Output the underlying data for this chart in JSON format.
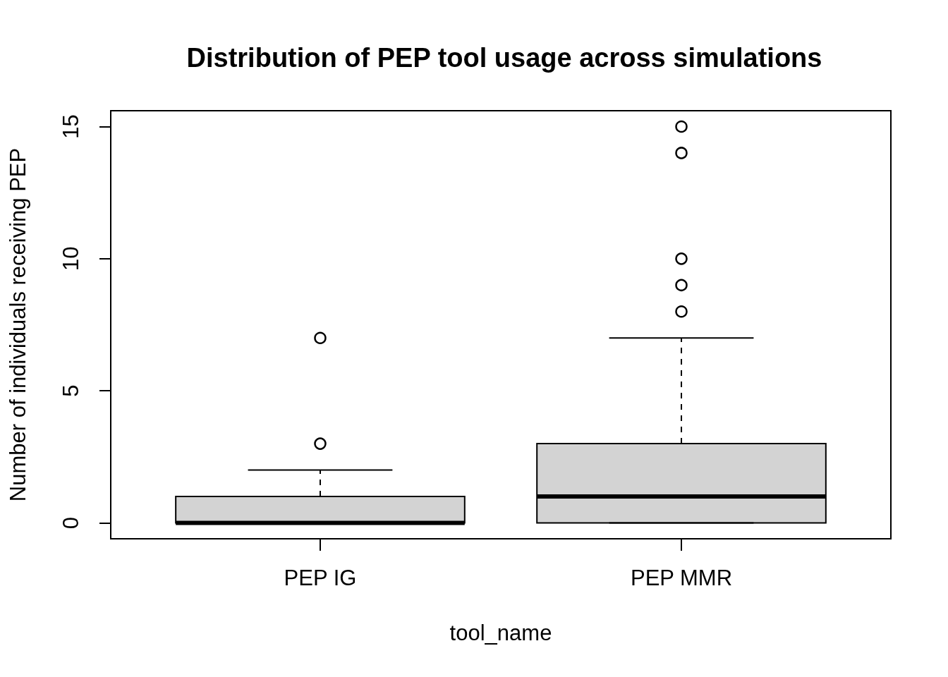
{
  "chart_data": {
    "type": "box",
    "title": "Distribution of PEP tool usage across simulations",
    "xlabel": "tool_name",
    "ylabel": "Number of individuals receiving PEP",
    "categories": [
      "PEP IG",
      "PEP MMR"
    ],
    "color": "#d3d3d3",
    "boxes": [
      {
        "low": 0,
        "q1": 0,
        "median": 0,
        "q3": 1,
        "high": 2,
        "outliers": [
          3,
          7
        ]
      },
      {
        "low": 0,
        "q1": 0,
        "median": 1,
        "q3": 3,
        "high": 7,
        "outliers": [
          8,
          9,
          10,
          14,
          15
        ]
      }
    ],
    "ylim": [
      -0.6,
      15.6
    ],
    "yticks": [
      0,
      5,
      10,
      15
    ]
  }
}
